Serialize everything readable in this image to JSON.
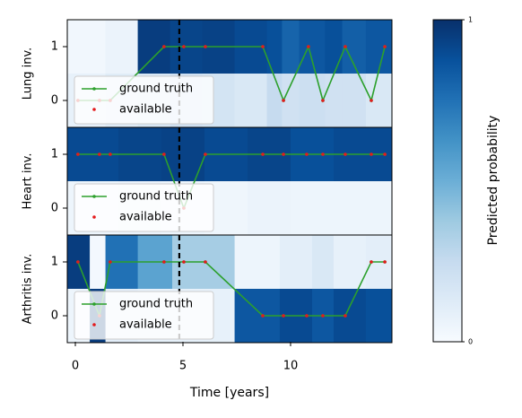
{
  "chart_data": {
    "type": "timeline-heatmap",
    "xlabel": "Time [years]",
    "xlim": [
      -0.375,
      14.71
    ],
    "xticks": [
      0,
      5,
      10
    ],
    "event_x": 4.83,
    "colorbar": {
      "label": "Predicted probability",
      "colormap": "Blues",
      "clim": [
        0,
        1
      ],
      "ticks": [
        0,
        1
      ]
    },
    "panels": [
      {
        "ylabel": "Lung inv.",
        "ylim": [
          -0.5,
          1.5
        ],
        "yticks": [
          0,
          1
        ],
        "heat": {
          "edges": [
            -0.375,
            1.4,
            2.9,
            4.4,
            5.9,
            7.4,
            8.9,
            9.6,
            10.4,
            11.6,
            12.4,
            13.5,
            14.71
          ],
          "rows": [
            {
              "y": 1,
              "values": [
                0.03,
                0.06,
                0.95,
                0.92,
                0.93,
                0.9,
                0.88,
                0.8,
                0.85,
                0.88,
                0.82,
                0.85
              ]
            },
            {
              "y": 0,
              "values": [
                0.08,
                0.12,
                0.15,
                0.2,
                0.18,
                0.15,
                0.25,
                0.2,
                0.22,
                0.2,
                0.2,
                0.15
              ]
            }
          ]
        },
        "series": [
          {
            "name": "ground truth",
            "color": "#2ca02c",
            "x": [
              0.12,
              1.12,
              1.62,
              4.12,
              5.04,
              6.04,
              8.71,
              9.67,
              10.83,
              11.5,
              12.54,
              13.75,
              14.38
            ],
            "values": [
              0,
              0,
              0,
              1,
              1,
              1,
              1,
              0,
              1,
              0,
              1,
              0,
              1
            ]
          },
          {
            "name": "available",
            "color": "#e41a1c",
            "x": [
              0.12,
              1.12,
              1.62,
              4.12,
              5.04,
              6.04,
              8.71,
              9.67,
              10.83,
              11.5,
              12.54,
              13.75,
              14.38
            ],
            "values": [
              0,
              0,
              0,
              1,
              1,
              1,
              1,
              0,
              1,
              0,
              1,
              0,
              1
            ]
          }
        ]
      },
      {
        "ylabel": "Heart inv.",
        "ylim": [
          -0.5,
          1.5
        ],
        "yticks": [
          0,
          1
        ],
        "heat": {
          "edges": [
            -0.375,
            2,
            4,
            6,
            8,
            10,
            12,
            14.71
          ],
          "rows": [
            {
              "y": 1,
              "values": [
                0.9,
                0.92,
                0.93,
                0.9,
                0.92,
                0.88,
                0.9
              ]
            },
            {
              "y": 0,
              "values": [
                0.05,
                0.06,
                0.05,
                0.04,
                0.06,
                0.05,
                0.05
              ]
            }
          ]
        },
        "series": [
          {
            "name": "ground truth",
            "color": "#2ca02c",
            "x": [
              0.12,
              1.12,
              1.62,
              4.12,
              5.04,
              6.04,
              8.71,
              9.67,
              10.75,
              11.5,
              12.54,
              13.75,
              14.38
            ],
            "values": [
              1,
              1,
              1,
              1,
              0,
              1,
              1,
              1,
              1,
              1,
              1,
              1,
              1
            ]
          },
          {
            "name": "available",
            "color": "#e41a1c",
            "x": [
              0.12,
              1.12,
              1.62,
              4.12,
              5.04,
              6.04,
              8.71,
              9.67,
              10.75,
              11.5,
              12.54,
              13.75,
              14.38
            ],
            "values": [
              1,
              1,
              1,
              1,
              0,
              1,
              1,
              1,
              1,
              1,
              1,
              1,
              1
            ]
          }
        ]
      },
      {
        "ylabel": "Arthritis inv.",
        "ylim": [
          -0.5,
          1.5
        ],
        "yticks": [
          0,
          1
        ],
        "heat": {
          "edges": [
            -0.375,
            0.67,
            1.4,
            2.9,
            4.5,
            7.4,
            9.5,
            11,
            12,
            13.5,
            14.71
          ],
          "rows": [
            {
              "y": 1,
              "values": [
                0.95,
                0.02,
                0.75,
                0.55,
                0.35,
                0.05,
                0.1,
                0.15,
                0.08,
                0.1
              ]
            },
            {
              "y": 0,
              "values": [
                0.05,
                0.95,
                0.1,
                0.08,
                0.08,
                0.85,
                0.9,
                0.85,
                0.9,
                0.88
              ]
            }
          ]
        },
        "series": [
          {
            "name": "ground truth",
            "color": "#2ca02c",
            "x": [
              0.12,
              1.12,
              1.62,
              4.12,
              5.04,
              6.04,
              8.71,
              9.67,
              10.75,
              11.5,
              12.54,
              13.75,
              14.38
            ],
            "values": [
              1,
              0,
              1,
              1,
              1,
              1,
              0,
              0,
              0,
              0,
              0,
              1,
              1
            ]
          },
          {
            "name": "available",
            "color": "#e41a1c",
            "x": [
              0.12,
              1.12,
              1.62,
              4.12,
              5.04,
              6.04,
              8.71,
              9.67,
              10.75,
              11.5,
              12.54,
              13.75,
              14.38
            ],
            "values": [
              1,
              0,
              1,
              1,
              1,
              1,
              0,
              0,
              0,
              0,
              0,
              1,
              1
            ]
          }
        ]
      }
    ]
  }
}
